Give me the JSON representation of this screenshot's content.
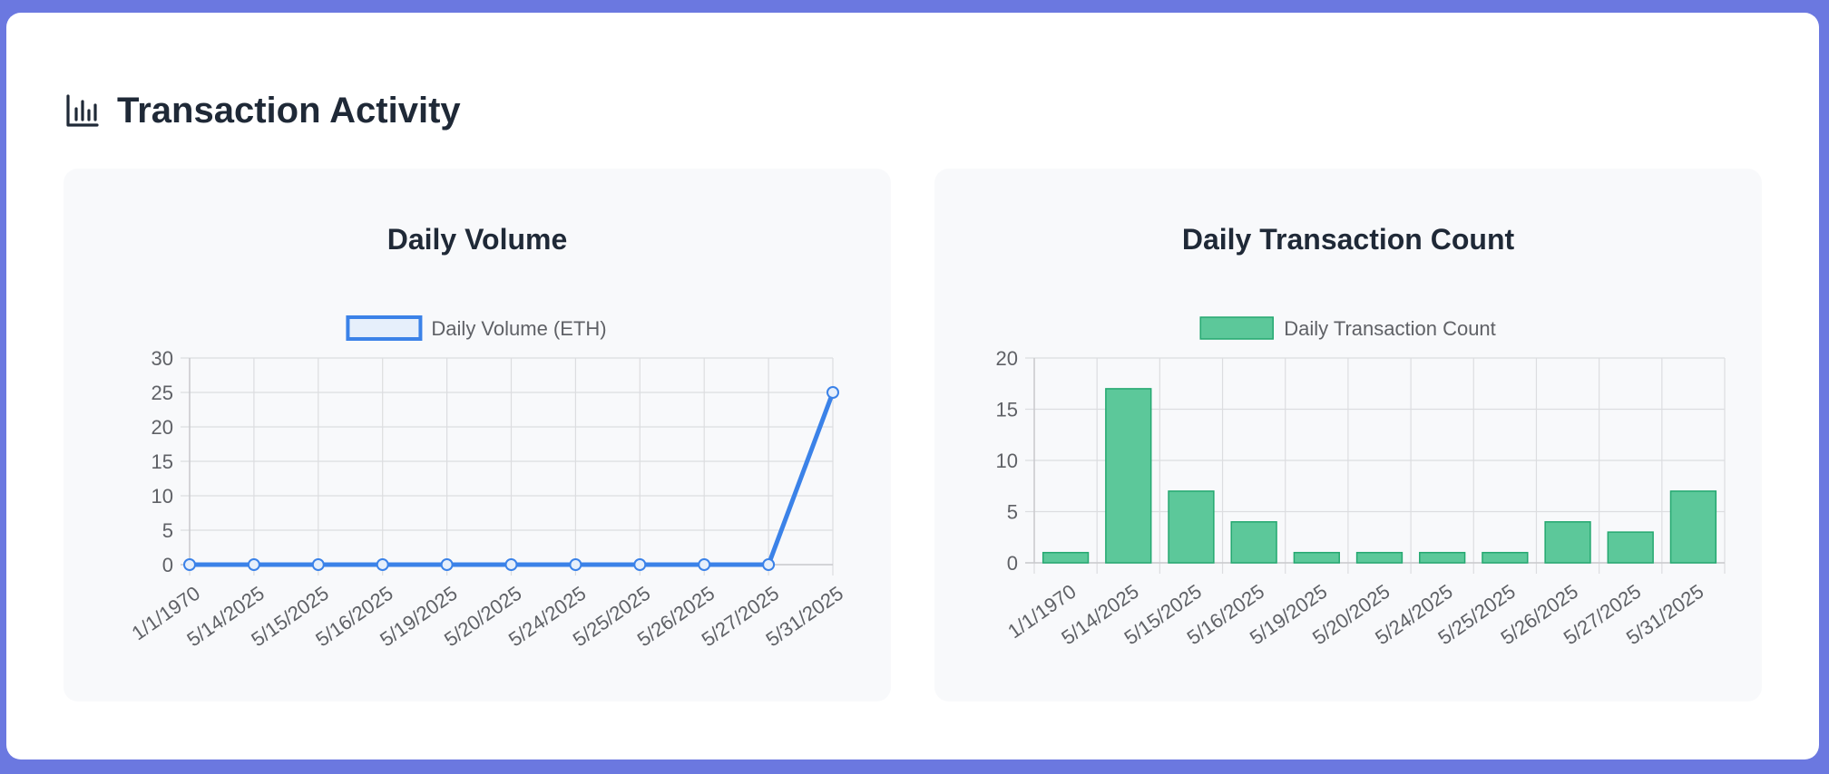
{
  "header": {
    "title": "Transaction Activity",
    "icon": "bar-chart-icon"
  },
  "chart_data": [
    {
      "type": "line",
      "title": "Daily Volume",
      "categories": [
        "1/1/1970",
        "5/14/2025",
        "5/15/2025",
        "5/16/2025",
        "5/19/2025",
        "5/20/2025",
        "5/24/2025",
        "5/25/2025",
        "5/26/2025",
        "5/27/2025",
        "5/31/2025"
      ],
      "series": [
        {
          "name": "Daily Volume (ETH)",
          "values": [
            0,
            0,
            0,
            0,
            0,
            0,
            0,
            0,
            0,
            0,
            25
          ]
        }
      ],
      "ylim": [
        0,
        30
      ],
      "yticks": [
        0,
        5,
        10,
        15,
        20,
        25,
        30
      ],
      "grid": true,
      "legend": "top-center",
      "colors": {
        "line": "#3b82e8",
        "fill": "#e6effb"
      }
    },
    {
      "type": "bar",
      "title": "Daily Transaction Count",
      "categories": [
        "1/1/1970",
        "5/14/2025",
        "5/15/2025",
        "5/16/2025",
        "5/19/2025",
        "5/20/2025",
        "5/24/2025",
        "5/25/2025",
        "5/26/2025",
        "5/27/2025",
        "5/31/2025"
      ],
      "series": [
        {
          "name": "Daily Transaction Count",
          "values": [
            1,
            17,
            7,
            4,
            1,
            1,
            1,
            1,
            4,
            3,
            7
          ]
        }
      ],
      "ylim": [
        0,
        20
      ],
      "yticks": [
        0,
        5,
        10,
        15,
        20
      ],
      "grid": true,
      "legend": "top-center",
      "colors": {
        "bar": "#5cc89a",
        "border": "#24a870"
      }
    }
  ]
}
